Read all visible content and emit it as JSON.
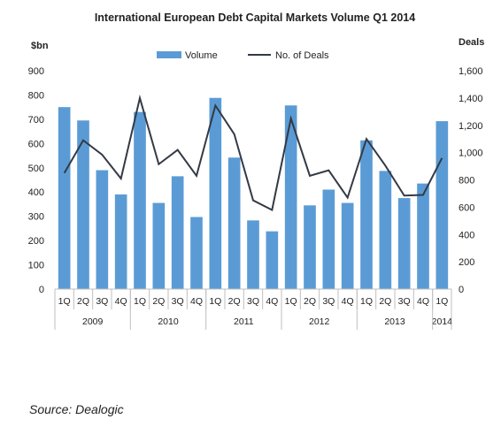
{
  "chart_data": {
    "type": "bar",
    "title": "International European Debt Capital Markets Volume Q1 2014",
    "y_left_label": "$bn",
    "y_right_label": "Deals",
    "ylim_left": [
      0,
      900
    ],
    "ylim_right": [
      0,
      1600
    ],
    "yticks_left": [
      "0",
      "100",
      "200",
      "300",
      "400",
      "500",
      "600",
      "700",
      "800",
      "900"
    ],
    "yticks_right": [
      "0",
      "200",
      "400",
      "600",
      "800",
      "1,000",
      "1,200",
      "1,400",
      "1,600"
    ],
    "grid": false,
    "legend_position": "top-center",
    "categories": [
      "1Q",
      "2Q",
      "3Q",
      "4Q",
      "1Q",
      "2Q",
      "3Q",
      "4Q",
      "1Q",
      "2Q",
      "3Q",
      "4Q",
      "1Q",
      "2Q",
      "3Q",
      "4Q",
      "1Q",
      "2Q",
      "3Q",
      "4Q",
      "1Q"
    ],
    "year_groups": [
      {
        "label": "2009",
        "count": 4
      },
      {
        "label": "2010",
        "count": 4
      },
      {
        "label": "2011",
        "count": 4
      },
      {
        "label": "2012",
        "count": 4
      },
      {
        "label": "2013",
        "count": 4
      },
      {
        "label": "2014",
        "count": 1
      }
    ],
    "series": [
      {
        "name": "Volume",
        "type": "bar",
        "axis": "left",
        "color": "#5b9bd5",
        "values": [
          750,
          695,
          490,
          390,
          730,
          355,
          465,
          297,
          788,
          542,
          283,
          238,
          757,
          345,
          410,
          355,
          613,
          487,
          375,
          435,
          692
        ]
      },
      {
        "name": "No. of Deals",
        "type": "line",
        "axis": "right",
        "color": "#333a45",
        "values": [
          850,
          1090,
          985,
          810,
          1400,
          915,
          1020,
          830,
          1345,
          1135,
          650,
          580,
          1250,
          830,
          870,
          670,
          1100,
          905,
          685,
          690,
          960
        ]
      }
    ]
  },
  "source": "Source: Dealogic"
}
